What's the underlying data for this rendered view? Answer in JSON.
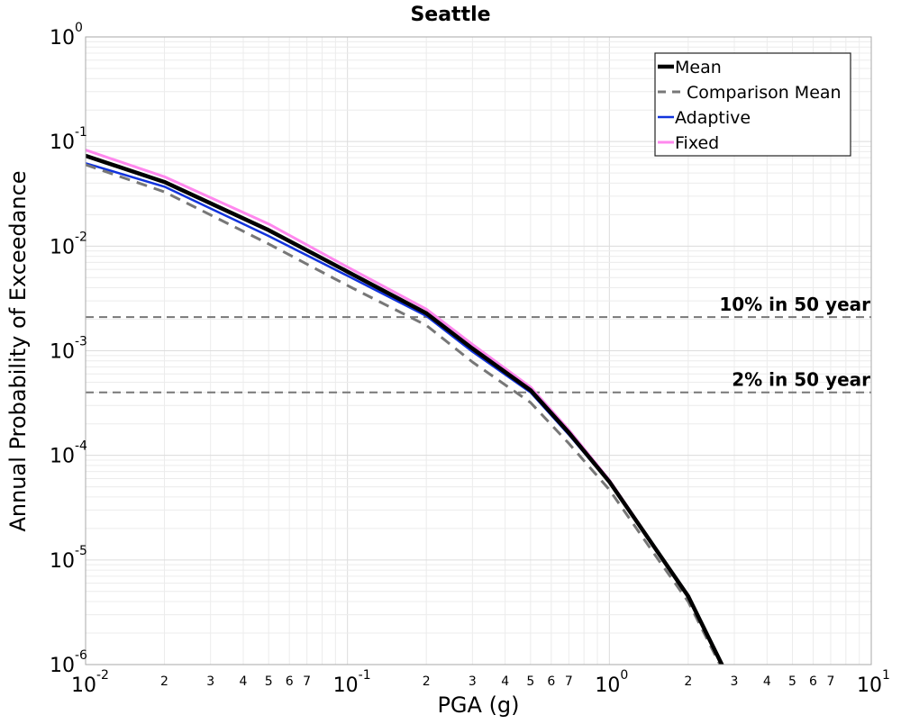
{
  "chart_data": {
    "type": "line",
    "title": "Seattle",
    "xlabel": "PGA (g)",
    "ylabel": "Annual Probability of Exceedance",
    "xscale": "log",
    "yscale": "log",
    "xlim": [
      0.01,
      10
    ],
    "ylim": [
      1e-06,
      1
    ],
    "grid": true,
    "legend_position": "top-right",
    "x_major_ticks": [
      {
        "base": "10",
        "exp": "-2",
        "value": 0.01
      },
      {
        "base": "10",
        "exp": "-1",
        "value": 0.1
      },
      {
        "base": "10",
        "exp": "0",
        "value": 1
      },
      {
        "base": "10",
        "exp": "1",
        "value": 10
      }
    ],
    "x_minor_tick_labels": [
      "2",
      "3",
      "4",
      "5",
      "6",
      "7"
    ],
    "y_major_ticks": [
      {
        "base": "10",
        "exp": "0",
        "value": 1
      },
      {
        "base": "10",
        "exp": "-1",
        "value": 0.1
      },
      {
        "base": "10",
        "exp": "-2",
        "value": 0.01
      },
      {
        "base": "10",
        "exp": "-3",
        "value": 0.001
      },
      {
        "base": "10",
        "exp": "-4",
        "value": 0.0001
      },
      {
        "base": "10",
        "exp": "-5",
        "value": 1e-05
      },
      {
        "base": "10",
        "exp": "-6",
        "value": 1e-06
      }
    ],
    "reference_lines": [
      {
        "label": "10% in 50 year",
        "y": 0.0021,
        "color": "#777777"
      },
      {
        "label": "2% in 50 year",
        "y": 0.0004,
        "color": "#777777"
      }
    ],
    "x": [
      0.01,
      0.02,
      0.05,
      0.1,
      0.2,
      0.3,
      0.5,
      0.7,
      1.0,
      1.5,
      2.0,
      2.7
    ],
    "series": [
      {
        "name": "Fixed",
        "color": "#ff88ee",
        "width": 3,
        "dash": "",
        "values": [
          0.083,
          0.046,
          0.0163,
          0.0063,
          0.0025,
          0.00115,
          0.00045,
          0.000175,
          5.8e-05,
          1.3e-05,
          4.6e-06,
          1e-06
        ]
      },
      {
        "name": "Adaptive",
        "color": "#1133dd",
        "width": 2.5,
        "dash": "",
        "values": [
          0.062,
          0.037,
          0.0125,
          0.0052,
          0.00215,
          0.00098,
          0.0004,
          0.000158,
          5.5e-05,
          1.25e-05,
          4.4e-06,
          9.5e-07
        ]
      },
      {
        "name": "Comparison Mean",
        "color": "#777777",
        "width": 3,
        "dash": "12,8",
        "values": [
          0.06,
          0.033,
          0.0105,
          0.0042,
          0.00175,
          0.00078,
          0.00032,
          0.00013,
          4.7e-05,
          1.1e-05,
          4e-06,
          9e-07
        ]
      },
      {
        "name": "Mean",
        "color": "#000000",
        "width": 4.5,
        "dash": "",
        "values": [
          0.073,
          0.041,
          0.0142,
          0.0057,
          0.00228,
          0.00105,
          0.00042,
          0.000165,
          5.6e-05,
          1.28e-05,
          4.5e-06,
          9.8e-07
        ]
      }
    ],
    "legend_entries": [
      {
        "name": "Mean",
        "color": "#000000",
        "width": 4.5,
        "dash": ""
      },
      {
        "name": "Comparison Mean",
        "color": "#777777",
        "width": 3,
        "dash": "9,7"
      },
      {
        "name": "Adaptive",
        "color": "#1133dd",
        "width": 2.5,
        "dash": ""
      },
      {
        "name": "Fixed",
        "color": "#ff88ee",
        "width": 3,
        "dash": ""
      }
    ]
  }
}
